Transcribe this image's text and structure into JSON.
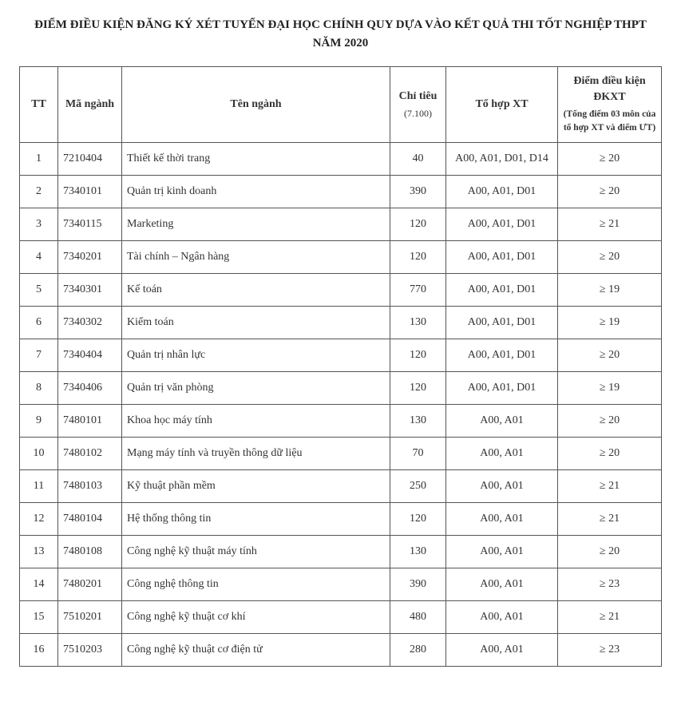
{
  "title": "ĐIỂM ĐIỀU KIỆN ĐĂNG KÝ XÉT TUYỂN ĐẠI HỌC CHÍNH QUY DỰA VÀO KẾT QUẢ THI TỐT NGHIỆP THPT NĂM 2020",
  "columns": {
    "tt": "TT",
    "code": "Mã ngành",
    "name": "Tên ngành",
    "quota": "Chỉ tiêu",
    "quota_sub": "(7.100)",
    "comb": "Tổ hợp XT",
    "score": "Điểm điều kiện ĐKXT",
    "score_sub": "(Tổng điểm 03 môn của tổ hợp XT và điểm ƯT)"
  },
  "rows": [
    {
      "tt": "1",
      "code": "7210404",
      "name": "Thiết kế thời trang",
      "quota": "40",
      "comb": "A00,  A01, D01, D14",
      "score": "≥  20"
    },
    {
      "tt": "2",
      "code": "7340101",
      "name": "Quản trị kinh doanh",
      "quota": "390",
      "comb": "A00, A01, D01",
      "score": "≥  20"
    },
    {
      "tt": "3",
      "code": "7340115",
      "name": "Marketing",
      "quota": "120",
      "comb": "A00, A01, D01",
      "score": "≥  21"
    },
    {
      "tt": "4",
      "code": "7340201",
      "name": "Tài chính – Ngân hàng",
      "quota": "120",
      "comb": "A00, A01, D01",
      "score": "≥  20"
    },
    {
      "tt": "5",
      "code": "7340301",
      "name": "Kế toán",
      "quota": "770",
      "comb": "A00, A01, D01",
      "score": "≥  19"
    },
    {
      "tt": "6",
      "code": "7340302",
      "name": "Kiểm toán",
      "quota": "130",
      "comb": "A00, A01, D01",
      "score": "≥  19"
    },
    {
      "tt": "7",
      "code": "7340404",
      "name": "Quản trị nhân lực",
      "quota": "120",
      "comb": "A00, A01, D01",
      "score": "≥  20"
    },
    {
      "tt": "8",
      "code": "7340406",
      "name": "Quản trị văn phòng",
      "quota": "120",
      "comb": "A00, A01, D01",
      "score": "≥  19"
    },
    {
      "tt": "9",
      "code": "7480101",
      "name": "Khoa học máy tính",
      "quota": "130",
      "comb": "A00, A01",
      "score": "≥  20"
    },
    {
      "tt": "10",
      "code": "7480102",
      "name": "Mạng máy tính và truyền thông dữ liệu",
      "quota": "70",
      "comb": "A00, A01",
      "score": "≥  20"
    },
    {
      "tt": "11",
      "code": "7480103",
      "name": "Kỹ thuật phần mềm",
      "quota": "250",
      "comb": "A00, A01",
      "score": "≥  21"
    },
    {
      "tt": "12",
      "code": "7480104",
      "name": "Hệ thống thông tin",
      "quota": "120",
      "comb": "A00, A01",
      "score": "≥  21"
    },
    {
      "tt": "13",
      "code": "7480108",
      "name": "Công nghệ kỹ thuật máy tính",
      "quota": "130",
      "comb": "A00, A01",
      "score": "≥  20"
    },
    {
      "tt": "14",
      "code": "7480201",
      "name": "Công nghệ thông tin",
      "quota": "390",
      "comb": "A00, A01",
      "score": "≥  23"
    },
    {
      "tt": "15",
      "code": "7510201",
      "name": "Công nghệ kỹ thuật cơ khí",
      "quota": "480",
      "comb": "A00, A01",
      "score": "≥  21"
    },
    {
      "tt": "16",
      "code": "7510203",
      "name": "Công nghệ kỹ thuật cơ điện tử",
      "quota": "280",
      "comb": "A00, A01",
      "score": "≥  23"
    }
  ]
}
